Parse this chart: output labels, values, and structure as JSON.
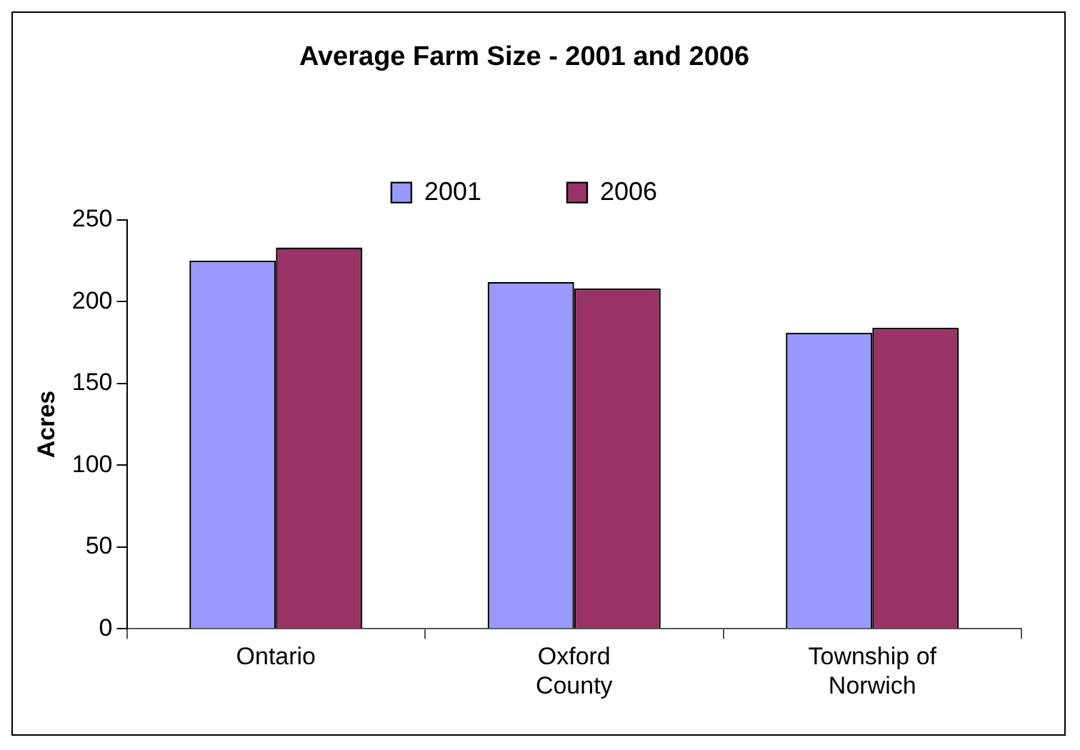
{
  "chart_data": {
    "type": "bar",
    "title": "Average Farm Size - 2001 and 2006",
    "ylabel": "Acres",
    "categories": [
      "Ontario",
      "Oxford County",
      "Township of Norwich"
    ],
    "series": [
      {
        "name": "2001",
        "color": "#9999ff",
        "values": [
          225,
          212,
          181
        ]
      },
      {
        "name": "2006",
        "color": "#993366",
        "values": [
          233,
          208,
          184
        ]
      }
    ],
    "ylim": [
      0,
      250
    ],
    "yticks": [
      0,
      50,
      100,
      150,
      200,
      250
    ],
    "grid": false,
    "legend": "top"
  }
}
